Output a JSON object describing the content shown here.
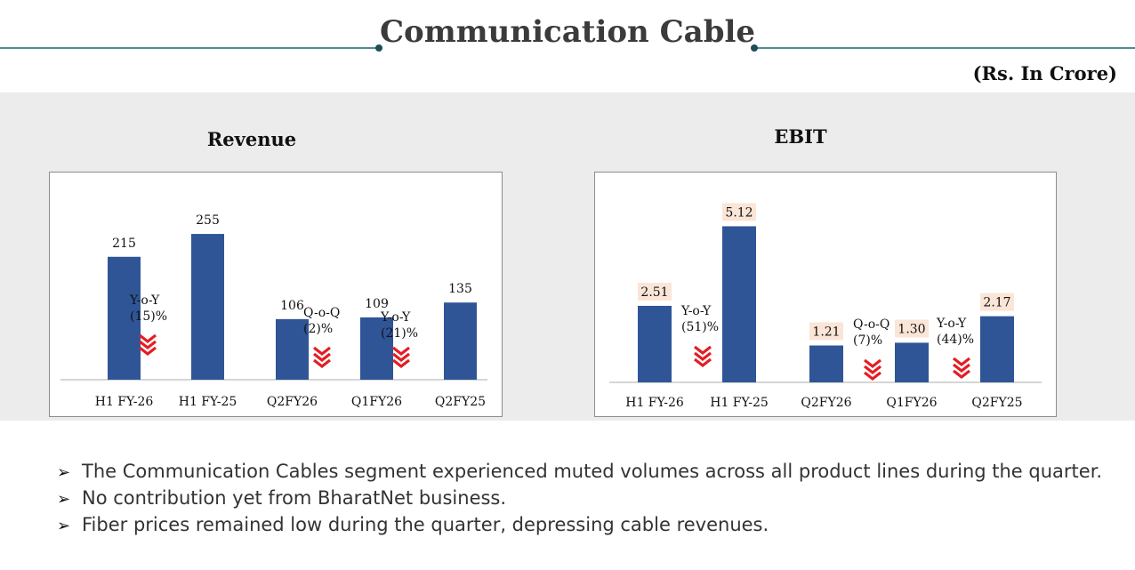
{
  "header": {
    "title": "Communication Cable",
    "unit_label": "(Rs. In Crore)"
  },
  "colors": {
    "bar": "#2f5597",
    "accent_red": "#e31e24",
    "label_bg": "#fbe5d6"
  },
  "chart_data": [
    {
      "type": "bar",
      "title": "Revenue",
      "categories": [
        "H1 FY-26",
        "H1 FY-25",
        "Q2FY26",
        "Q1FY26",
        "Q2FY25"
      ],
      "values": [
        215,
        255,
        106,
        109,
        135
      ],
      "value_labels": [
        "215",
        "255",
        "106",
        "109",
        "135"
      ],
      "ylim": [
        0,
        280
      ],
      "annotations": [
        {
          "line1": "Y-o-Y",
          "line2": "(15)%",
          "direction": "down",
          "between": [
            0,
            1
          ]
        },
        {
          "line1": "Q-o-Q",
          "line2": "(2)%",
          "direction": "down",
          "between": [
            2,
            3
          ]
        },
        {
          "line1": "Y-o-Y",
          "line2": "(21)%",
          "direction": "down",
          "between": [
            3,
            4
          ]
        }
      ]
    },
    {
      "type": "bar",
      "title": "EBIT",
      "categories": [
        "H1 FY-26",
        "H1 FY-25",
        "Q2FY26",
        "Q1FY26",
        "Q2FY25"
      ],
      "values": [
        2.51,
        5.12,
        1.21,
        1.3,
        2.17
      ],
      "value_labels": [
        "2.51",
        "5.12",
        "1.21",
        "1.30",
        "2.17"
      ],
      "ylim": [
        0,
        5.6
      ],
      "annotations": [
        {
          "line1": "Y-o-Y",
          "line2": "(51)%",
          "direction": "down",
          "between": [
            0,
            1
          ]
        },
        {
          "line1": "Q-o-Q",
          "line2": "(7)%",
          "direction": "down",
          "between": [
            2,
            3
          ]
        },
        {
          "line1": "Y-o-Y",
          "line2": "(44)%",
          "direction": "down",
          "between": [
            3,
            4
          ]
        }
      ]
    }
  ],
  "bullets": [
    "The Communication Cables segment experienced muted volumes across all product lines during the quarter.",
    "No contribution yet from BharatNet business.",
    "Fiber prices remained low during the quarter, depressing cable revenues."
  ],
  "bullet_icon": "arrowhead-icon"
}
